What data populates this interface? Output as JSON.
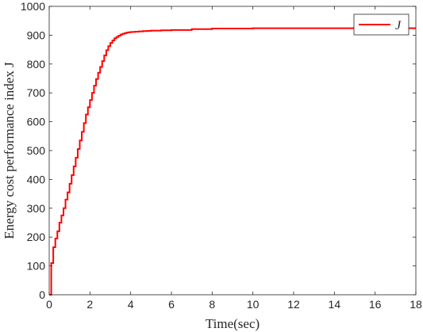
{
  "chart_data": {
    "type": "line",
    "xlabel": "Time(sec)",
    "ylabel": "Energy cost performance index J",
    "xlim": [
      0,
      18
    ],
    "ylim": [
      0,
      1000
    ],
    "x_ticks": [
      0,
      2,
      4,
      6,
      8,
      10,
      12,
      14,
      16,
      18
    ],
    "y_ticks": [
      0,
      100,
      200,
      300,
      400,
      500,
      600,
      700,
      800,
      900,
      1000
    ],
    "grid": false,
    "legend_position": "top-right",
    "series": [
      {
        "name": "J",
        "color": "#ff0000",
        "style": "staircase",
        "x": [
          0,
          0.1,
          0.2,
          0.3,
          0.4,
          0.5,
          0.6,
          0.7,
          0.8,
          0.9,
          1.0,
          1.1,
          1.2,
          1.3,
          1.4,
          1.5,
          1.6,
          1.7,
          1.8,
          1.9,
          2.0,
          2.1,
          2.2,
          2.3,
          2.4,
          2.5,
          2.6,
          2.7,
          2.8,
          2.9,
          3.0,
          3.1,
          3.2,
          3.3,
          3.4,
          3.5,
          3.6,
          3.7,
          3.8,
          3.9,
          4.0,
          4.2,
          4.4,
          4.6,
          4.8,
          5.0,
          5.5,
          6.0,
          7.0,
          8.0,
          10.0,
          12.0,
          14.0,
          16.0,
          18.0
        ],
        "y": [
          0,
          110,
          165,
          195,
          220,
          250,
          275,
          300,
          330,
          355,
          385,
          415,
          445,
          475,
          505,
          535,
          565,
          595,
          625,
          650,
          675,
          700,
          725,
          748,
          770,
          790,
          810,
          830,
          848,
          862,
          873,
          882,
          889,
          894,
          898,
          902,
          905,
          907,
          909,
          910,
          911,
          912,
          913,
          914,
          915,
          916,
          917,
          918,
          921,
          923,
          924,
          924,
          924,
          924,
          924
        ]
      }
    ]
  }
}
